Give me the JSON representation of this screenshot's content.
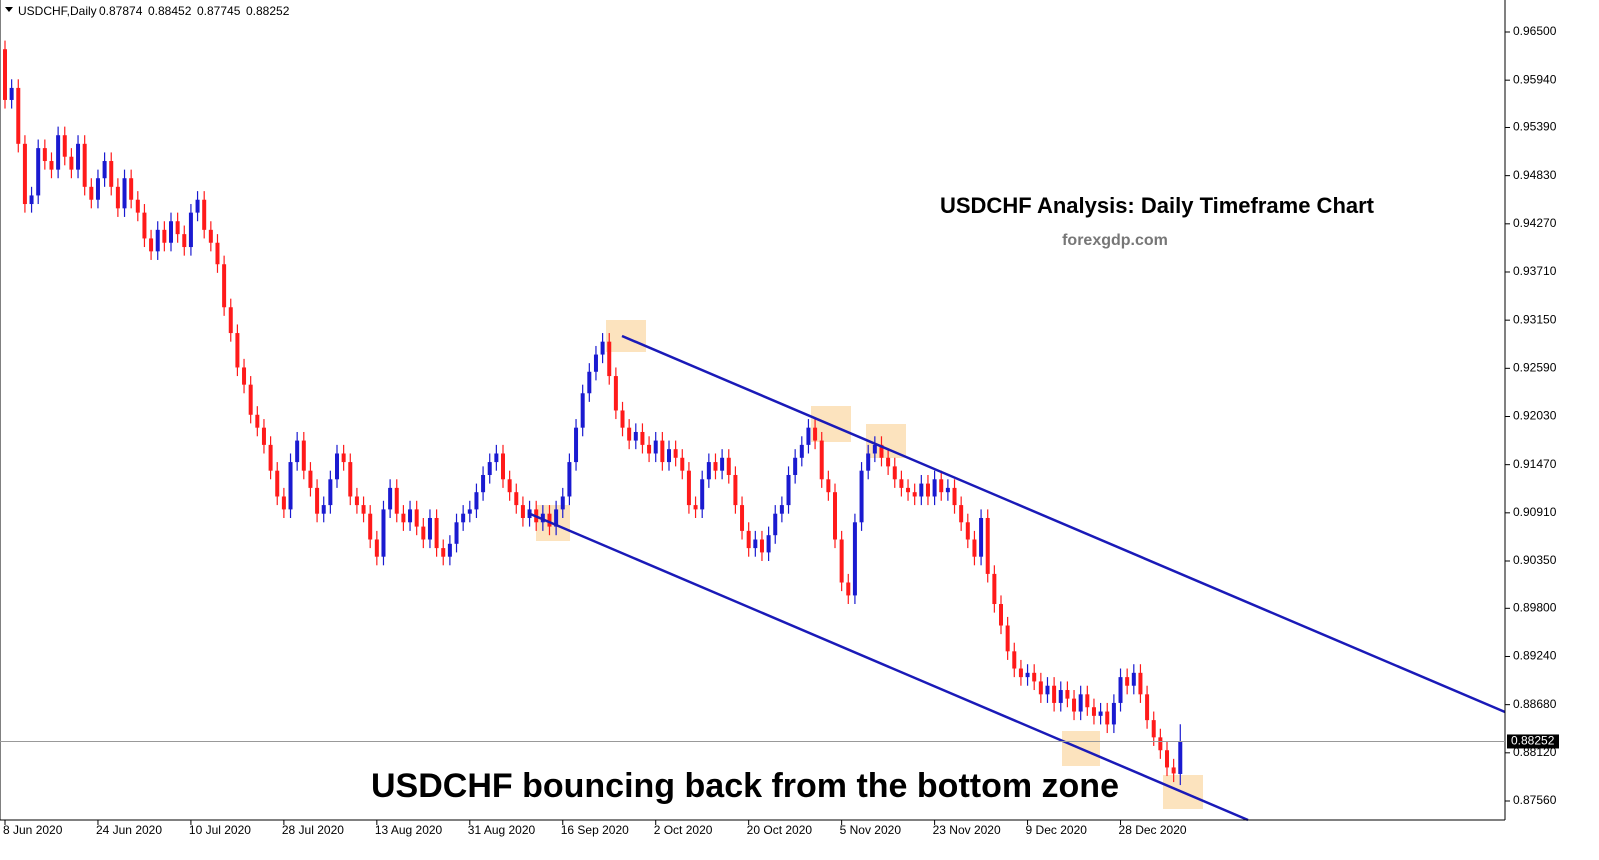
{
  "chart_data": {
    "type": "candlestick",
    "header": "USDCHF,Daily",
    "title": "USDCHF Analysis: Daily Timeframe Chart",
    "subtitle": "forexgdp.com",
    "annotation": "USDCHF bouncing back from the bottom zone",
    "up_color": "#1a1ad0",
    "down_color": "#ff1a1a",
    "categories": [
      "8 Jun 2020",
      null,
      null,
      null,
      null,
      null,
      null,
      null,
      null,
      null,
      null,
      null,
      null,
      null,
      "24 Jun 2020",
      null,
      null,
      null,
      null,
      null,
      null,
      null,
      null,
      null,
      null,
      null,
      null,
      null,
      "10 Jul 2020",
      null,
      null,
      null,
      null,
      null,
      null,
      null,
      null,
      null,
      null,
      null,
      null,
      null,
      "28 Jul 2020",
      null,
      null,
      null,
      null,
      null,
      null,
      null,
      null,
      null,
      null,
      null,
      null,
      null,
      "13 Aug 2020",
      null,
      null,
      null,
      null,
      null,
      null,
      null,
      null,
      null,
      null,
      null,
      null,
      null,
      "31 Aug 2020",
      null,
      null,
      null,
      null,
      null,
      null,
      null,
      null,
      null,
      null,
      null,
      null,
      null,
      "16 Sep 2020",
      null,
      null,
      null,
      null,
      null,
      null,
      null,
      null,
      null,
      null,
      null,
      null,
      null,
      "2 Oct 2020",
      null,
      null,
      null,
      null,
      null,
      null,
      null,
      null,
      null,
      null,
      null,
      null,
      null,
      "20 Oct 2020",
      null,
      null,
      null,
      null,
      null,
      null,
      null,
      null,
      null,
      null,
      null,
      null,
      null,
      "5 Nov 2020",
      null,
      null,
      null,
      null,
      null,
      null,
      null,
      null,
      null,
      null,
      null,
      null,
      null,
      "23 Nov 2020",
      null,
      null,
      null,
      null,
      null,
      null,
      null,
      null,
      null,
      null,
      null,
      null,
      null,
      "9 Dec 2020",
      null,
      null,
      null,
      null,
      null,
      null,
      null,
      null,
      null,
      null,
      null,
      null,
      null,
      "28 Dec 2020",
      null,
      null,
      null,
      null,
      null,
      null,
      null,
      null,
      null
    ],
    "series": {
      "open": [
        0.963,
        0.9571,
        0.9585,
        0.952,
        0.945,
        0.946,
        0.9515,
        0.95,
        0.949,
        0.953,
        0.9505,
        0.949,
        0.952,
        0.947,
        0.9455,
        0.948,
        0.95,
        0.947,
        0.9445,
        0.948,
        0.9455,
        0.944,
        0.941,
        0.9395,
        0.942,
        0.9405,
        0.943,
        0.9415,
        0.94,
        0.944,
        0.9455,
        0.942,
        0.9405,
        0.938,
        0.933,
        0.93,
        0.926,
        0.924,
        0.9205,
        0.919,
        0.917,
        0.914,
        0.911,
        0.9095,
        0.915,
        0.9175,
        0.914,
        0.912,
        0.909,
        0.91,
        0.913,
        0.916,
        0.915,
        0.911,
        0.91,
        0.909,
        0.906,
        0.904,
        0.9095,
        0.912,
        0.909,
        0.908,
        0.9095,
        0.9075,
        0.906,
        0.9085,
        0.905,
        0.904,
        0.9055,
        0.908,
        0.909,
        0.9095,
        0.9115,
        0.9135,
        0.915,
        0.916,
        0.913,
        0.9115,
        0.91,
        0.9085,
        0.9095,
        0.908,
        0.909,
        0.9075,
        0.9095,
        0.911,
        0.915,
        0.919,
        0.923,
        0.9255,
        0.9275,
        0.929,
        0.925,
        0.921,
        0.919,
        0.9175,
        0.9185,
        0.917,
        0.916,
        0.9175,
        0.915,
        0.9165,
        0.9155,
        0.914,
        0.91,
        0.9095,
        0.913,
        0.915,
        0.914,
        0.9155,
        0.9135,
        0.91,
        0.907,
        0.905,
        0.906,
        0.9045,
        0.9065,
        0.909,
        0.91,
        0.9135,
        0.9155,
        0.917,
        0.919,
        0.9175,
        0.913,
        0.9115,
        0.906,
        0.901,
        0.8995,
        0.908,
        0.914,
        0.916,
        0.917,
        0.9155,
        0.9145,
        0.913,
        0.912,
        0.9115,
        0.911,
        0.9125,
        0.911,
        0.913,
        0.9115,
        0.912,
        0.91,
        0.908,
        0.906,
        0.904,
        0.9085,
        0.902,
        0.8985,
        0.896,
        0.893,
        0.891,
        0.89,
        0.8905,
        0.8895,
        0.888,
        0.889,
        0.887,
        0.8885,
        0.8875,
        0.886,
        0.888,
        0.8865,
        0.8855,
        0.886,
        0.8845,
        0.887,
        0.89,
        0.889,
        0.8905,
        0.888,
        0.885,
        0.883,
        0.8815,
        0.8795,
        0.87874
      ],
      "high": [
        0.964,
        0.9595,
        0.9595,
        0.953,
        0.947,
        0.9525,
        0.9525,
        0.951,
        0.954,
        0.954,
        0.9515,
        0.953,
        0.953,
        0.948,
        0.949,
        0.951,
        0.951,
        0.948,
        0.949,
        0.949,
        0.9465,
        0.945,
        0.942,
        0.943,
        0.943,
        0.944,
        0.944,
        0.9425,
        0.945,
        0.9465,
        0.9465,
        0.943,
        0.9415,
        0.939,
        0.934,
        0.931,
        0.927,
        0.925,
        0.9215,
        0.92,
        0.918,
        0.915,
        0.912,
        0.916,
        0.9185,
        0.9185,
        0.915,
        0.913,
        0.911,
        0.914,
        0.917,
        0.917,
        0.916,
        0.912,
        0.911,
        0.91,
        0.907,
        0.9105,
        0.913,
        0.913,
        0.91,
        0.9105,
        0.9105,
        0.9085,
        0.9095,
        0.9095,
        0.906,
        0.9065,
        0.909,
        0.91,
        0.9105,
        0.9125,
        0.9145,
        0.916,
        0.917,
        0.917,
        0.914,
        0.9125,
        0.911,
        0.9105,
        0.9105,
        0.91,
        0.91,
        0.9105,
        0.912,
        0.916,
        0.92,
        0.924,
        0.9265,
        0.9285,
        0.93,
        0.93,
        0.926,
        0.922,
        0.92,
        0.9195,
        0.9195,
        0.918,
        0.9185,
        0.9185,
        0.9175,
        0.9175,
        0.9165,
        0.915,
        0.911,
        0.914,
        0.916,
        0.916,
        0.9165,
        0.9165,
        0.9145,
        0.911,
        0.908,
        0.907,
        0.907,
        0.9075,
        0.91,
        0.911,
        0.9145,
        0.9165,
        0.918,
        0.92,
        0.92,
        0.9185,
        0.914,
        0.9125,
        0.907,
        0.902,
        0.909,
        0.915,
        0.917,
        0.918,
        0.918,
        0.9165,
        0.9155,
        0.914,
        0.913,
        0.9125,
        0.9135,
        0.9135,
        0.914,
        0.914,
        0.913,
        0.913,
        0.911,
        0.909,
        0.907,
        0.9095,
        0.9095,
        0.903,
        0.8995,
        0.897,
        0.894,
        0.892,
        0.8915,
        0.8915,
        0.8905,
        0.89,
        0.89,
        0.8895,
        0.8895,
        0.8885,
        0.889,
        0.889,
        0.8875,
        0.887,
        0.887,
        0.888,
        0.891,
        0.891,
        0.8915,
        0.8915,
        0.889,
        0.886,
        0.884,
        0.8825,
        0.8805,
        0.88452
      ],
      "low": [
        0.9561,
        0.9561,
        0.951,
        0.944,
        0.944,
        0.945,
        0.949,
        0.948,
        0.948,
        0.9495,
        0.948,
        0.948,
        0.946,
        0.9445,
        0.9445,
        0.947,
        0.946,
        0.9435,
        0.9435,
        0.9445,
        0.943,
        0.94,
        0.9385,
        0.9385,
        0.9395,
        0.9395,
        0.9405,
        0.939,
        0.939,
        0.943,
        0.941,
        0.9395,
        0.937,
        0.932,
        0.929,
        0.925,
        0.923,
        0.9195,
        0.918,
        0.916,
        0.913,
        0.91,
        0.9085,
        0.9085,
        0.914,
        0.913,
        0.911,
        0.908,
        0.908,
        0.909,
        0.912,
        0.914,
        0.91,
        0.909,
        0.908,
        0.905,
        0.903,
        0.903,
        0.9085,
        0.908,
        0.907,
        0.907,
        0.9065,
        0.905,
        0.905,
        0.904,
        0.903,
        0.903,
        0.9045,
        0.907,
        0.908,
        0.9085,
        0.9105,
        0.9125,
        0.914,
        0.912,
        0.9105,
        0.909,
        0.9075,
        0.9075,
        0.907,
        0.907,
        0.9065,
        0.9065,
        0.9085,
        0.91,
        0.914,
        0.918,
        0.922,
        0.9245,
        0.9265,
        0.924,
        0.92,
        0.918,
        0.9165,
        0.9165,
        0.916,
        0.915,
        0.915,
        0.914,
        0.914,
        0.9145,
        0.913,
        0.909,
        0.9085,
        0.9085,
        0.912,
        0.913,
        0.913,
        0.9125,
        0.909,
        0.906,
        0.904,
        0.904,
        0.9035,
        0.9035,
        0.9055,
        0.908,
        0.909,
        0.9125,
        0.9145,
        0.916,
        0.9165,
        0.912,
        0.9105,
        0.905,
        0.9,
        0.8985,
        0.8985,
        0.907,
        0.913,
        0.915,
        0.9145,
        0.9135,
        0.912,
        0.911,
        0.9105,
        0.91,
        0.91,
        0.91,
        0.91,
        0.9105,
        0.9105,
        0.909,
        0.907,
        0.905,
        0.903,
        0.903,
        0.901,
        0.8975,
        0.895,
        0.892,
        0.89,
        0.889,
        0.889,
        0.8885,
        0.887,
        0.887,
        0.886,
        0.886,
        0.8865,
        0.885,
        0.885,
        0.8855,
        0.8845,
        0.8845,
        0.8835,
        0.8835,
        0.886,
        0.888,
        0.888,
        0.887,
        0.884,
        0.882,
        0.8805,
        0.8785,
        0.8778,
        0.87745
      ],
      "close": [
        0.9571,
        0.9585,
        0.952,
        0.945,
        0.946,
        0.9515,
        0.95,
        0.949,
        0.953,
        0.9505,
        0.949,
        0.952,
        0.947,
        0.9455,
        0.948,
        0.95,
        0.947,
        0.9445,
        0.948,
        0.9455,
        0.944,
        0.941,
        0.9395,
        0.942,
        0.9405,
        0.943,
        0.9415,
        0.94,
        0.944,
        0.9455,
        0.942,
        0.9405,
        0.938,
        0.933,
        0.93,
        0.926,
        0.924,
        0.9205,
        0.919,
        0.917,
        0.914,
        0.911,
        0.9095,
        0.915,
        0.9175,
        0.914,
        0.912,
        0.909,
        0.91,
        0.913,
        0.916,
        0.915,
        0.911,
        0.91,
        0.909,
        0.906,
        0.904,
        0.9095,
        0.912,
        0.909,
        0.908,
        0.9095,
        0.9075,
        0.906,
        0.9085,
        0.905,
        0.904,
        0.9055,
        0.908,
        0.909,
        0.9095,
        0.9115,
        0.9135,
        0.915,
        0.916,
        0.913,
        0.9115,
        0.91,
        0.9085,
        0.9095,
        0.908,
        0.909,
        0.9075,
        0.9095,
        0.911,
        0.915,
        0.919,
        0.923,
        0.9255,
        0.9275,
        0.929,
        0.925,
        0.921,
        0.919,
        0.9175,
        0.9185,
        0.917,
        0.916,
        0.9175,
        0.915,
        0.9165,
        0.9155,
        0.914,
        0.91,
        0.9095,
        0.913,
        0.915,
        0.914,
        0.9155,
        0.9135,
        0.91,
        0.907,
        0.905,
        0.906,
        0.9045,
        0.9065,
        0.909,
        0.91,
        0.9135,
        0.9155,
        0.917,
        0.919,
        0.9175,
        0.913,
        0.9115,
        0.906,
        0.901,
        0.8995,
        0.908,
        0.914,
        0.916,
        0.917,
        0.9155,
        0.9145,
        0.913,
        0.912,
        0.9115,
        0.911,
        0.9125,
        0.911,
        0.913,
        0.9115,
        0.912,
        0.91,
        0.908,
        0.906,
        0.904,
        0.9085,
        0.902,
        0.8985,
        0.896,
        0.893,
        0.891,
        0.89,
        0.8905,
        0.8895,
        0.888,
        0.889,
        0.887,
        0.8885,
        0.8875,
        0.886,
        0.888,
        0.8865,
        0.8855,
        0.886,
        0.8845,
        0.887,
        0.89,
        0.889,
        0.8905,
        0.888,
        0.885,
        0.883,
        0.8815,
        0.8795,
        0.8788,
        0.88252
      ]
    },
    "ylim": [
      0.87339,
      0.96872
    ],
    "yticks": [
      {
        "value": 0.965,
        "label": "0.96500"
      },
      {
        "value": 0.9594,
        "label": "0.95940"
      },
      {
        "value": 0.9539,
        "label": "0.95390"
      },
      {
        "value": 0.9483,
        "label": "0.94830"
      },
      {
        "value": 0.9427,
        "label": "0.94270"
      },
      {
        "value": 0.9371,
        "label": "0.93710"
      },
      {
        "value": 0.9315,
        "label": "0.93150"
      },
      {
        "value": 0.9259,
        "label": "0.92590"
      },
      {
        "value": 0.9203,
        "label": "0.92030"
      },
      {
        "value": 0.9147,
        "label": "0.91470"
      },
      {
        "value": 0.9091,
        "label": "0.90910"
      },
      {
        "value": 0.9035,
        "label": "0.90350"
      },
      {
        "value": 0.898,
        "label": "0.89800"
      },
      {
        "value": 0.8924,
        "label": "0.89240"
      },
      {
        "value": 0.8868,
        "label": "0.88680"
      },
      {
        "value": 0.8812,
        "label": "0.88120"
      },
      {
        "value": 0.8756,
        "label": "0.87560"
      }
    ]
  }
}
